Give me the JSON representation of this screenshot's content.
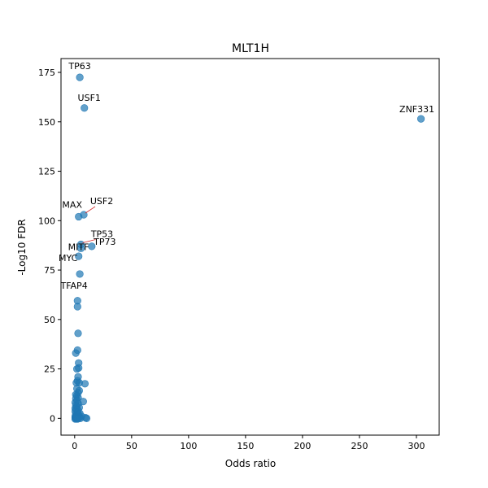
{
  "chart_data": {
    "type": "scatter",
    "title": "MLT1H",
    "xlabel": "Odds ratio",
    "ylabel": "-Log10 FDR",
    "xlim": [
      -12,
      320
    ],
    "ylim": [
      -8.5,
      182
    ],
    "xticks": [
      0,
      50,
      100,
      150,
      200,
      250,
      300
    ],
    "yticks": [
      0,
      25,
      50,
      75,
      100,
      125,
      150,
      175
    ],
    "grid": false,
    "marker_color": "#1f77b4",
    "marker_alpha": 0.7,
    "labeled_points": [
      {
        "label": "TP63",
        "x": 4.5,
        "y": 172.5
      },
      {
        "label": "USF1",
        "x": 8.5,
        "y": 157
      },
      {
        "label": "ZNF331",
        "x": 304,
        "y": 151.5
      },
      {
        "label": "USF2",
        "x": 8,
        "y": 103
      },
      {
        "label": "MAX",
        "x": 3.5,
        "y": 102
      },
      {
        "label": "TP53",
        "x": 5.5,
        "y": 88
      },
      {
        "label": "MITF",
        "x": 5.5,
        "y": 86
      },
      {
        "label": "TP73",
        "x": 15,
        "y": 87
      },
      {
        "label": "MYC",
        "x": 3.5,
        "y": 82
      },
      {
        "label": "TFAP4",
        "x": 4.5,
        "y": 73
      }
    ],
    "points": [
      {
        "x": 2.5,
        "y": 59.5
      },
      {
        "x": 2.5,
        "y": 56.5
      },
      {
        "x": 3,
        "y": 43
      },
      {
        "x": 2.5,
        "y": 34.5
      },
      {
        "x": 1,
        "y": 33
      },
      {
        "x": 3.5,
        "y": 28
      },
      {
        "x": 2,
        "y": 25
      },
      {
        "x": 3.5,
        "y": 25.5
      },
      {
        "x": 3,
        "y": 21
      },
      {
        "x": 2.5,
        "y": 19
      },
      {
        "x": 1.5,
        "y": 18
      },
      {
        "x": 4,
        "y": 18
      },
      {
        "x": 9,
        "y": 17.5
      },
      {
        "x": 2,
        "y": 15
      },
      {
        "x": 4,
        "y": 14
      },
      {
        "x": 3,
        "y": 13
      },
      {
        "x": 1,
        "y": 12
      },
      {
        "x": 2,
        "y": 11.5
      },
      {
        "x": 3,
        "y": 10.5
      },
      {
        "x": 1,
        "y": 10
      },
      {
        "x": 2,
        "y": 9
      },
      {
        "x": 7.5,
        "y": 8.5
      },
      {
        "x": 0.5,
        "y": 8
      },
      {
        "x": 3,
        "y": 7.5
      },
      {
        "x": 1,
        "y": 6.5
      },
      {
        "x": 2,
        "y": 6
      },
      {
        "x": 4,
        "y": 5.5
      },
      {
        "x": 0.5,
        "y": 5
      },
      {
        "x": 1.5,
        "y": 4.5
      },
      {
        "x": 3,
        "y": 4
      },
      {
        "x": 0.5,
        "y": 3.5
      },
      {
        "x": 2.5,
        "y": 3
      },
      {
        "x": 4.5,
        "y": 2.5
      },
      {
        "x": 1,
        "y": 2
      },
      {
        "x": 2,
        "y": 1.5
      },
      {
        "x": 3.5,
        "y": 1.5
      },
      {
        "x": 0.5,
        "y": 1
      },
      {
        "x": 1.5,
        "y": 0.8
      },
      {
        "x": 6,
        "y": 1
      },
      {
        "x": 0.5,
        "y": 0.3
      },
      {
        "x": 1,
        "y": 0
      },
      {
        "x": 2,
        "y": 0.2
      },
      {
        "x": 3,
        "y": 0
      },
      {
        "x": 4,
        "y": 0.3
      },
      {
        "x": 5,
        "y": 0
      },
      {
        "x": 9.5,
        "y": 0.3
      },
      {
        "x": 10.5,
        "y": 0
      },
      {
        "x": 0.5,
        "y": -0.3
      },
      {
        "x": 1.5,
        "y": -0.3
      },
      {
        "x": 2.5,
        "y": -0.3
      }
    ]
  }
}
